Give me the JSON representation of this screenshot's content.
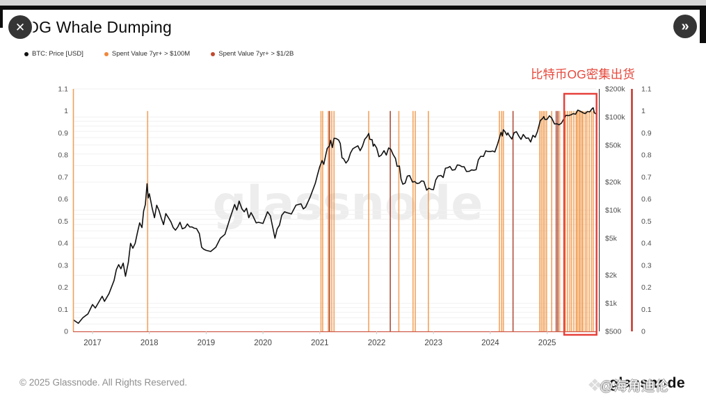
{
  "window": {
    "title": "OG Whale Dumping",
    "close_glyph": "✕",
    "next_glyph": "»"
  },
  "legend": [
    {
      "label": "BTC: Price [USD]",
      "color": "#111111"
    },
    {
      "label": "Spent Value 7yr+ > $100M",
      "color": "#f0873c"
    },
    {
      "label": "Spent Value 7yr+ > $1/2B",
      "color": "#c14a2e"
    }
  ],
  "annotation": {
    "text": "比特币OG密集出货",
    "color": "#e6483c"
  },
  "center_watermark": "glassnode",
  "footer": {
    "copyright": "© 2025 Glassnode. All Rights Reserved."
  },
  "logo": {
    "brand": "glassnode",
    "icon": "diamond-icon",
    "overlay_watermark": "@海角迪伦"
  },
  "chart_data": {
    "type": "line",
    "title": "OG Whale Dumping",
    "x_axis": {
      "ticks": [
        2017,
        2018,
        2019,
        2020,
        2021,
        2022,
        2023,
        2024,
        2025
      ],
      "range_years": [
        2016.65,
        2025.87
      ]
    },
    "left_axis": {
      "ticks": [
        0,
        0.1,
        0.2,
        0.3,
        0.4,
        0.5,
        0.6,
        0.7,
        0.8,
        0.9,
        1,
        1.1
      ],
      "range": [
        0,
        1.1
      ]
    },
    "price_axis": {
      "scale": "log",
      "range_usd": [
        500,
        200000
      ],
      "tick_labels": [
        [
          200000,
          "$200k"
        ],
        [
          100000,
          "$100k"
        ],
        [
          50000,
          "$50k"
        ],
        [
          20000,
          "$20k"
        ],
        [
          10000,
          "$10k"
        ],
        [
          5000,
          "$5k"
        ],
        [
          2000,
          "$2k"
        ],
        [
          1000,
          "$1k"
        ],
        [
          500,
          "$500"
        ]
      ],
      "gridlines": [
        600,
        700,
        800,
        900,
        1000,
        2000,
        3000,
        4000,
        5000,
        6000,
        7000,
        8000,
        9000,
        10000,
        20000,
        30000,
        40000,
        50000,
        60000,
        70000,
        80000,
        90000,
        100000,
        200000
      ]
    },
    "right_norm_axis": {
      "ticks": [
        1.1,
        1,
        0.9,
        0.8,
        0.7,
        0.6,
        0.5,
        0.4,
        0.3,
        0.2,
        0.1,
        0
      ]
    },
    "series": [
      {
        "name": "BTC: Price [USD]",
        "type": "line",
        "color": "#111111",
        "points": [
          [
            2016.67,
            660
          ],
          [
            2016.75,
            610
          ],
          [
            2016.83,
            700
          ],
          [
            2016.92,
            770
          ],
          [
            2017.0,
            970
          ],
          [
            2017.05,
            890
          ],
          [
            2017.17,
            1190
          ],
          [
            2017.21,
            1050
          ],
          [
            2017.29,
            1270
          ],
          [
            2017.38,
            1760
          ],
          [
            2017.42,
            2300
          ],
          [
            2017.46,
            2600
          ],
          [
            2017.5,
            2350
          ],
          [
            2017.54,
            2700
          ],
          [
            2017.58,
            1950
          ],
          [
            2017.63,
            2750
          ],
          [
            2017.67,
            4400
          ],
          [
            2017.71,
            3900
          ],
          [
            2017.75,
            4400
          ],
          [
            2017.79,
            5700
          ],
          [
            2017.83,
            7300
          ],
          [
            2017.87,
            6500
          ],
          [
            2017.9,
            9800
          ],
          [
            2017.93,
            11500
          ],
          [
            2017.96,
            19200
          ],
          [
            2017.98,
            13500
          ],
          [
            2018.0,
            15000
          ],
          [
            2018.05,
            10500
          ],
          [
            2018.09,
            8300
          ],
          [
            2018.13,
            11300
          ],
          [
            2018.17,
            9900
          ],
          [
            2018.21,
            8200
          ],
          [
            2018.25,
            7000
          ],
          [
            2018.29,
            9200
          ],
          [
            2018.33,
            8400
          ],
          [
            2018.38,
            7500
          ],
          [
            2018.42,
            6500
          ],
          [
            2018.46,
            6100
          ],
          [
            2018.5,
            6600
          ],
          [
            2018.54,
            7400
          ],
          [
            2018.58,
            6300
          ],
          [
            2018.63,
            6500
          ],
          [
            2018.67,
            7100
          ],
          [
            2018.71,
            6600
          ],
          [
            2018.75,
            6600
          ],
          [
            2018.79,
            6400
          ],
          [
            2018.83,
            6350
          ],
          [
            2018.88,
            5600
          ],
          [
            2018.92,
            4000
          ],
          [
            2018.96,
            3800
          ],
          [
            2019.0,
            3700
          ],
          [
            2019.08,
            3600
          ],
          [
            2019.17,
            4000
          ],
          [
            2019.25,
            5000
          ],
          [
            2019.33,
            5500
          ],
          [
            2019.42,
            8200
          ],
          [
            2019.5,
            11500
          ],
          [
            2019.54,
            10000
          ],
          [
            2019.58,
            12500
          ],
          [
            2019.63,
            10300
          ],
          [
            2019.67,
            9600
          ],
          [
            2019.71,
            10500
          ],
          [
            2019.75,
            8300
          ],
          [
            2019.79,
            9400
          ],
          [
            2019.83,
            8500
          ],
          [
            2019.88,
            7300
          ],
          [
            2019.92,
            7400
          ],
          [
            2020.0,
            7200
          ],
          [
            2020.08,
            9600
          ],
          [
            2020.13,
            8700
          ],
          [
            2020.21,
            5000
          ],
          [
            2020.25,
            6300
          ],
          [
            2020.29,
            6900
          ],
          [
            2020.33,
            8800
          ],
          [
            2020.38,
            9600
          ],
          [
            2020.42,
            9400
          ],
          [
            2020.5,
            9100
          ],
          [
            2020.58,
            11300
          ],
          [
            2020.67,
            11700
          ],
          [
            2020.71,
            10300
          ],
          [
            2020.75,
            10800
          ],
          [
            2020.83,
            13800
          ],
          [
            2020.92,
            19400
          ],
          [
            2020.96,
            24000
          ],
          [
            2021.0,
            29500
          ],
          [
            2021.04,
            34000
          ],
          [
            2021.07,
            31000
          ],
          [
            2021.1,
            38000
          ],
          [
            2021.13,
            46000
          ],
          [
            2021.17,
            49000
          ],
          [
            2021.19,
            56000
          ],
          [
            2021.22,
            47000
          ],
          [
            2021.25,
            59000
          ],
          [
            2021.29,
            58500
          ],
          [
            2021.33,
            56500
          ],
          [
            2021.36,
            52000
          ],
          [
            2021.39,
            36500
          ],
          [
            2021.42,
            35500
          ],
          [
            2021.46,
            32000
          ],
          [
            2021.5,
            34500
          ],
          [
            2021.54,
            41000
          ],
          [
            2021.58,
            45500
          ],
          [
            2021.63,
            47500
          ],
          [
            2021.67,
            49000
          ],
          [
            2021.71,
            43500
          ],
          [
            2021.75,
            48500
          ],
          [
            2021.79,
            57500
          ],
          [
            2021.83,
            61500
          ],
          [
            2021.86,
            66500
          ],
          [
            2021.88,
            57500
          ],
          [
            2021.92,
            57000
          ],
          [
            2021.94,
            48500
          ],
          [
            2021.96,
            51000
          ],
          [
            2022.0,
            46500
          ],
          [
            2022.04,
            37500
          ],
          [
            2022.08,
            38800
          ],
          [
            2022.13,
            43500
          ],
          [
            2022.17,
            39000
          ],
          [
            2022.21,
            46500
          ],
          [
            2022.25,
            45000
          ],
          [
            2022.29,
            39500
          ],
          [
            2022.33,
            36000
          ],
          [
            2022.36,
            29500
          ],
          [
            2022.4,
            29800
          ],
          [
            2022.43,
            21500
          ],
          [
            2022.46,
            19000
          ],
          [
            2022.5,
            19500
          ],
          [
            2022.54,
            23200
          ],
          [
            2022.58,
            23500
          ],
          [
            2022.63,
            20000
          ],
          [
            2022.67,
            20300
          ],
          [
            2022.71,
            19300
          ],
          [
            2022.75,
            19500
          ],
          [
            2022.79,
            20600
          ],
          [
            2022.83,
            20400
          ],
          [
            2022.88,
            16400
          ],
          [
            2022.92,
            17200
          ],
          [
            2022.96,
            16700
          ],
          [
            2023.0,
            16600
          ],
          [
            2023.04,
            21100
          ],
          [
            2023.08,
            23200
          ],
          [
            2023.13,
            23600
          ],
          [
            2023.17,
            22400
          ],
          [
            2023.21,
            28200
          ],
          [
            2023.25,
            28500
          ],
          [
            2023.29,
            29400
          ],
          [
            2023.33,
            26900
          ],
          [
            2023.38,
            27200
          ],
          [
            2023.42,
            30600
          ],
          [
            2023.46,
            30300
          ],
          [
            2023.5,
            29300
          ],
          [
            2023.54,
            29200
          ],
          [
            2023.58,
            26000
          ],
          [
            2023.63,
            26100
          ],
          [
            2023.67,
            27000
          ],
          [
            2023.71,
            26800
          ],
          [
            2023.75,
            27200
          ],
          [
            2023.79,
            34600
          ],
          [
            2023.83,
            37800
          ],
          [
            2023.88,
            37700
          ],
          [
            2023.92,
            43300
          ],
          [
            2023.96,
            42600
          ],
          [
            2024.0,
            42500
          ],
          [
            2024.04,
            43100
          ],
          [
            2024.08,
            42100
          ],
          [
            2024.13,
            51500
          ],
          [
            2024.17,
            62500
          ],
          [
            2024.19,
            68500
          ],
          [
            2024.21,
            62500
          ],
          [
            2024.23,
            73000
          ],
          [
            2024.26,
            69500
          ],
          [
            2024.29,
            64000
          ],
          [
            2024.31,
            67500
          ],
          [
            2024.33,
            63500
          ],
          [
            2024.38,
            58000
          ],
          [
            2024.42,
            67800
          ],
          [
            2024.46,
            69500
          ],
          [
            2024.5,
            62500
          ],
          [
            2024.54,
            57500
          ],
          [
            2024.58,
            64800
          ],
          [
            2024.63,
            59000
          ],
          [
            2024.67,
            59500
          ],
          [
            2024.71,
            54000
          ],
          [
            2024.75,
            63500
          ],
          [
            2024.79,
            60500
          ],
          [
            2024.83,
            70000
          ],
          [
            2024.88,
            91500
          ],
          [
            2024.92,
            96500
          ],
          [
            2024.94,
            101000
          ],
          [
            2024.96,
            94000
          ],
          [
            2025.0,
            94500
          ],
          [
            2025.04,
            103000
          ],
          [
            2025.08,
            97500
          ],
          [
            2025.13,
            84000
          ],
          [
            2025.17,
            84500
          ],
          [
            2025.21,
            82500
          ],
          [
            2025.25,
            85500
          ],
          [
            2025.29,
            94500
          ],
          [
            2025.33,
            104000
          ],
          [
            2025.38,
            103500
          ],
          [
            2025.42,
            105500
          ],
          [
            2025.46,
            108500
          ],
          [
            2025.5,
            107000
          ],
          [
            2025.54,
            118500
          ],
          [
            2025.58,
            115500
          ],
          [
            2025.63,
            111000
          ],
          [
            2025.67,
            108500
          ],
          [
            2025.71,
            114500
          ],
          [
            2025.75,
            113500
          ],
          [
            2025.79,
            122500
          ],
          [
            2025.81,
            125500
          ],
          [
            2025.83,
            111000
          ],
          [
            2025.86,
            108000
          ]
        ]
      },
      {
        "name": "Spent Value 7yr+ > $100M",
        "type": "event-lines",
        "color": "rgba(240,146,62,0.8)",
        "event_years": [
          2017.97,
          2021.02,
          2021.05,
          2021.15,
          2021.21,
          2021.25,
          2021.86,
          2022.39,
          2022.64,
          2022.68,
          2022.91,
          2024.16,
          2024.2,
          2024.23,
          2024.87,
          2024.9,
          2024.93,
          2024.96,
          2024.99,
          2025.08,
          2025.22,
          2025.32,
          2025.36,
          2025.4,
          2025.43,
          2025.47,
          2025.51,
          2025.53,
          2025.56,
          2025.58,
          2025.61,
          2025.63,
          2025.67,
          2025.7,
          2025.74,
          2025.78,
          2025.81
        ]
      },
      {
        "name": "Spent Value 7yr+ > $1/2B",
        "type": "event-lines",
        "color": "rgba(164,58,36,0.85)",
        "event_years": [
          2021.17,
          2022.24,
          2024.4,
          2025.16,
          2025.19
        ]
      }
    ],
    "highlight_box": {
      "start_year": 2025.3,
      "end_year": 2025.87,
      "color": "#e6403a"
    },
    "axis_line_colors": {
      "left_orange": "#f0a05c",
      "bottom_red": "#cf5a48",
      "right_black": "#222222",
      "secondary_red": "#c0342a"
    }
  }
}
